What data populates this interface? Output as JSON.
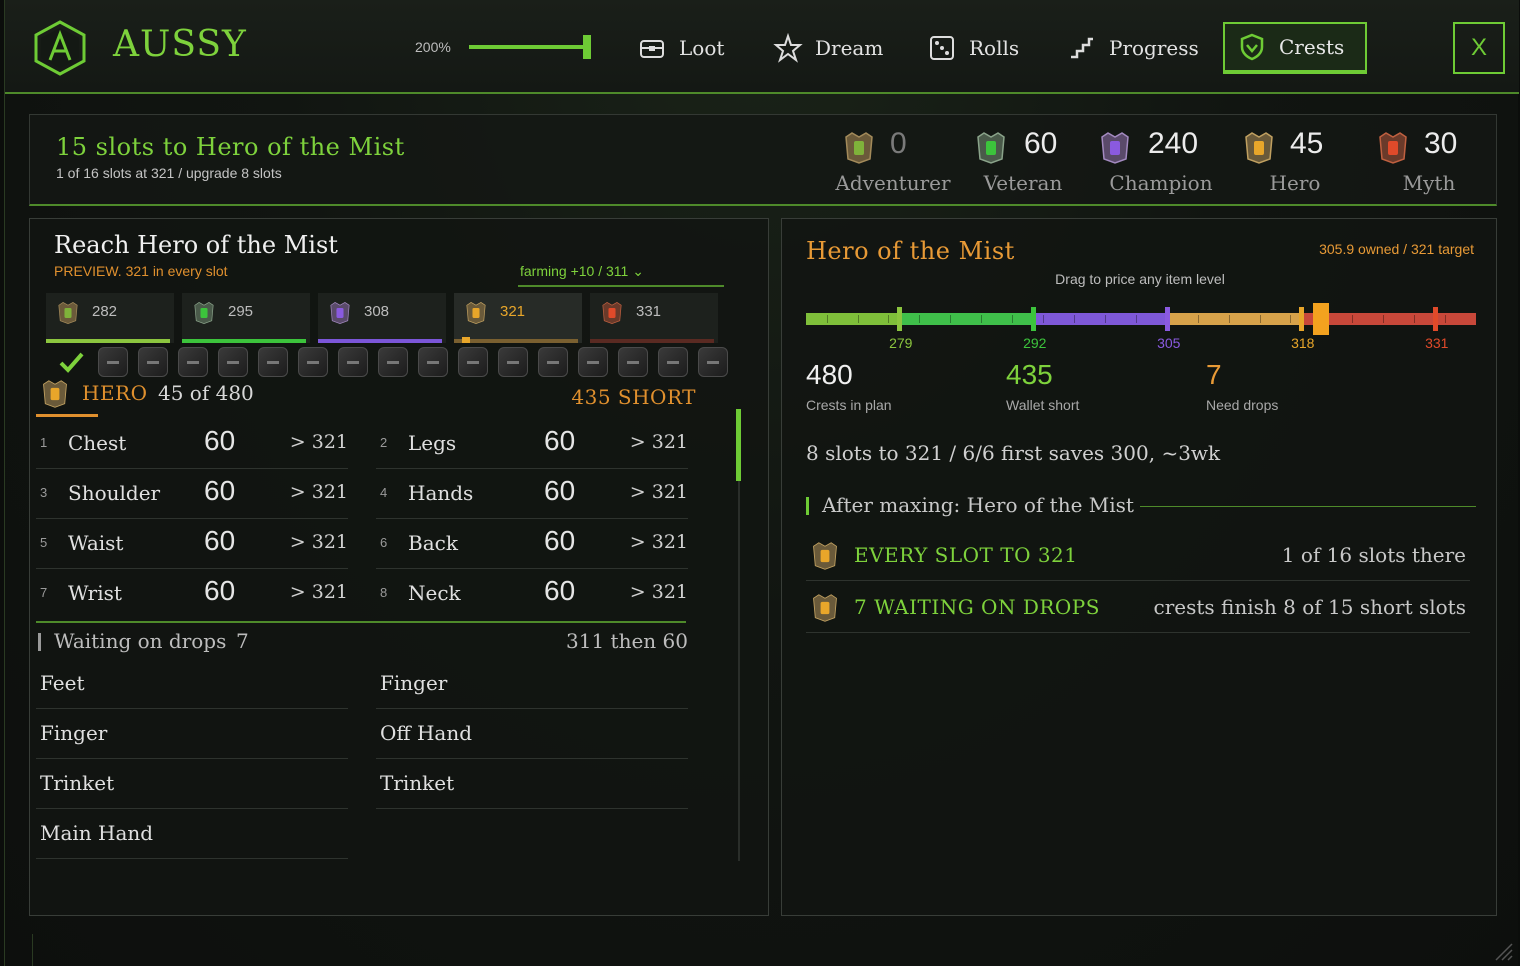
{
  "app": {
    "title": "AUSSY",
    "zoom_label": "200%",
    "zoom_percent": 100
  },
  "nav": {
    "loot": "Loot",
    "dream": "Dream",
    "rolls": "Rolls",
    "progress": "Progress",
    "crests": "Crests",
    "close": "X"
  },
  "summary": {
    "title": "15 slots to Hero of the Mist",
    "subtitle": "1 of 16 slots at 321 / upgrade 8 slots",
    "tiers": [
      {
        "count": "0",
        "name": "Adventurer",
        "color": "#7fb23a"
      },
      {
        "count": "60",
        "name": "Veteran",
        "color": "#3cc43c"
      },
      {
        "count": "240",
        "name": "Champion",
        "color": "#8a5ae0"
      },
      {
        "count": "45",
        "name": "Hero",
        "color": "#e8a62a"
      },
      {
        "count": "30",
        "name": "Myth",
        "color": "#e04a2a"
      }
    ]
  },
  "left": {
    "title": "Reach Hero of the Mist",
    "preview": "PREVIEW.  321 in every slot",
    "farming": "farming +10 / 311 ⌄",
    "ilvl_tabs": [
      {
        "value": "282",
        "color": "#8cc63f"
      },
      {
        "value": "295",
        "color": "#3cc43c"
      },
      {
        "value": "308",
        "color": "#7b56d8"
      },
      {
        "value": "321",
        "color": "#e8a62a"
      },
      {
        "value": "331",
        "color": "#c0392b"
      }
    ],
    "hero": {
      "label": "HERO",
      "count": "45 of 480",
      "short": "435 SHORT"
    },
    "crest_rows": [
      {
        "idx": "1",
        "slot": "Chest",
        "cost": "60",
        "target": "> 321"
      },
      {
        "idx": "2",
        "slot": "Legs",
        "cost": "60",
        "target": "> 321"
      },
      {
        "idx": "3",
        "slot": "Shoulder",
        "cost": "60",
        "target": "> 321"
      },
      {
        "idx": "4",
        "slot": "Hands",
        "cost": "60",
        "target": "> 321"
      },
      {
        "idx": "5",
        "slot": "Waist",
        "cost": "60",
        "target": "> 321"
      },
      {
        "idx": "6",
        "slot": "Back",
        "cost": "60",
        "target": "> 321"
      },
      {
        "idx": "7",
        "slot": "Wrist",
        "cost": "60",
        "target": "> 321"
      },
      {
        "idx": "8",
        "slot": "Neck",
        "cost": "60",
        "target": "> 321"
      }
    ],
    "waiting": {
      "label": "Waiting on drops",
      "count": "7",
      "right": "311 then 60"
    },
    "drops": [
      "Feet",
      "Finger",
      "Finger",
      "Off Hand",
      "Trinket",
      "Trinket",
      "Main Hand"
    ]
  },
  "right": {
    "title": "Hero of the Mist",
    "owned": "305.9 owned / 321 target",
    "drag_hint": "Drag to price any item level",
    "track": {
      "min": 270,
      "max": 335,
      "handle": 320,
      "marks": [
        {
          "label": "279",
          "value": 279,
          "color": "#8cc63f"
        },
        {
          "label": "292",
          "value": 292,
          "color": "#3cc43c"
        },
        {
          "label": "305",
          "value": 305,
          "color": "#8a5ae0"
        },
        {
          "label": "318",
          "value": 318,
          "color": "#e8a62a"
        },
        {
          "label": "331",
          "value": 331,
          "color": "#e04a2a"
        }
      ]
    },
    "stats": [
      {
        "value": "480",
        "label": "Crests in plan",
        "color": "#f0f0f0"
      },
      {
        "value": "435",
        "label": "Wallet short",
        "color": "#7ed23c"
      },
      {
        "value": "7",
        "label": "Need drops",
        "color": "#e89a36"
      }
    ],
    "plan_line": "8 slots to 321 / 6/6 first saves 300, ~3wk",
    "after_label": "After maxing: Hero of the Mist",
    "goals": [
      {
        "label": "EVERY SLOT TO 321",
        "right": "1 of 16 slots there"
      },
      {
        "label": "7 WAITING ON DROPS",
        "right": "crests finish 8 of 15 short slots"
      }
    ]
  }
}
